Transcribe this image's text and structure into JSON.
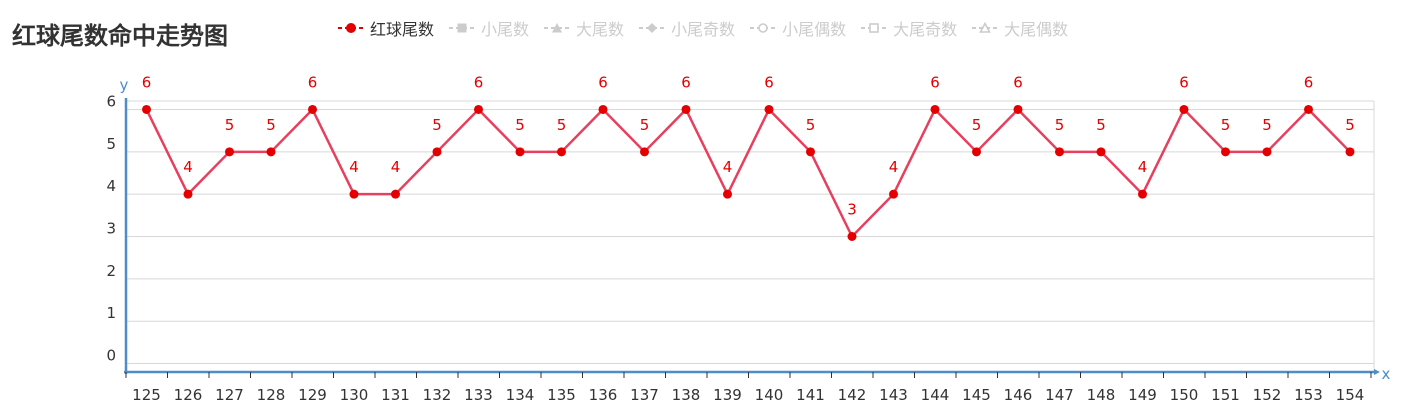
{
  "title": "红球尾数命中走势图",
  "legend": [
    {
      "label": "红球尾数",
      "marker": "circle-filled",
      "color": "#e40000",
      "line_color": "#e40000",
      "active": true
    },
    {
      "label": "小尾数",
      "marker": "square-filled",
      "color": "#cccccc",
      "line_color": "#cccccc",
      "active": false
    },
    {
      "label": "大尾数",
      "marker": "triangle-filled",
      "color": "#cccccc",
      "line_color": "#cccccc",
      "active": false
    },
    {
      "label": "小尾奇数",
      "marker": "diamond-filled",
      "color": "#cccccc",
      "line_color": "#cccccc",
      "active": false
    },
    {
      "label": "小尾偶数",
      "marker": "circle-open",
      "color": "#cccccc",
      "line_color": "#cccccc",
      "active": false
    },
    {
      "label": "大尾奇数",
      "marker": "square-open",
      "color": "#cccccc",
      "line_color": "#cccccc",
      "active": false
    },
    {
      "label": "大尾偶数",
      "marker": "triangle-open",
      "color": "#cccccc",
      "line_color": "#cccccc",
      "active": false
    }
  ],
  "chart_data": {
    "type": "line",
    "xlabel": "x",
    "ylabel": "y",
    "x": [
      125,
      126,
      127,
      128,
      129,
      130,
      131,
      132,
      133,
      134,
      135,
      136,
      137,
      138,
      139,
      140,
      141,
      142,
      143,
      144,
      145,
      146,
      147,
      148,
      149,
      150,
      151,
      152,
      153,
      154
    ],
    "y_ticks": [
      0,
      1,
      2,
      3,
      4,
      5,
      6
    ],
    "ylim": [
      -0.2,
      6.2
    ],
    "grid": true,
    "legend_position": "top",
    "series": [
      {
        "name": "红球尾数",
        "values": [
          6,
          4,
          5,
          5,
          6,
          4,
          4,
          5,
          6,
          5,
          5,
          6,
          5,
          6,
          4,
          6,
          5,
          3,
          4,
          6,
          5,
          6,
          5,
          5,
          4,
          6,
          5,
          5,
          6,
          5
        ],
        "line_color": "#e6405e",
        "marker_color": "#e40000",
        "label_color": "#e40000"
      }
    ],
    "axis_color": "#4d8dc8",
    "grid_color": "#d8d8d8",
    "tick_label_color": "#333333"
  }
}
